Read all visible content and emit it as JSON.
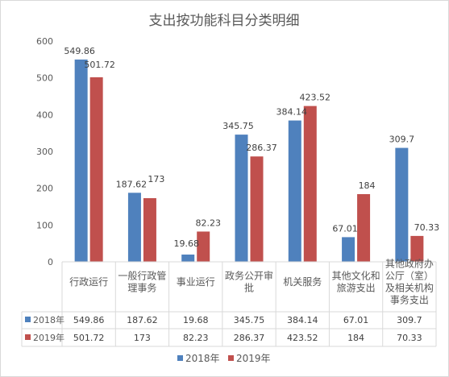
{
  "chart_data": {
    "type": "bar",
    "title": "支出按功能科目分类明细",
    "categories": [
      [
        "行政运行"
      ],
      [
        "一般行政管",
        "理事务"
      ],
      [
        "事业运行"
      ],
      [
        "政务公开审",
        "批"
      ],
      [
        "机关服务"
      ],
      [
        "其他文化和",
        "旅游支出"
      ],
      [
        "其他政府办",
        "公厅（室）",
        "及相关机构",
        "事务支出"
      ]
    ],
    "series": [
      {
        "name": "2018年",
        "color": "#4f81bd",
        "values": [
          549.86,
          187.62,
          19.68,
          345.75,
          384.14,
          67.01,
          309.7
        ]
      },
      {
        "name": "2019年",
        "color": "#c0504d",
        "values": [
          501.72,
          173,
          82.23,
          286.37,
          423.52,
          184,
          70.33
        ]
      }
    ],
    "ylim": [
      0,
      600
    ],
    "yticks": [
      0,
      100,
      200,
      300,
      400,
      500,
      600
    ],
    "grid": false,
    "legend": "bottom",
    "data_table": true
  }
}
